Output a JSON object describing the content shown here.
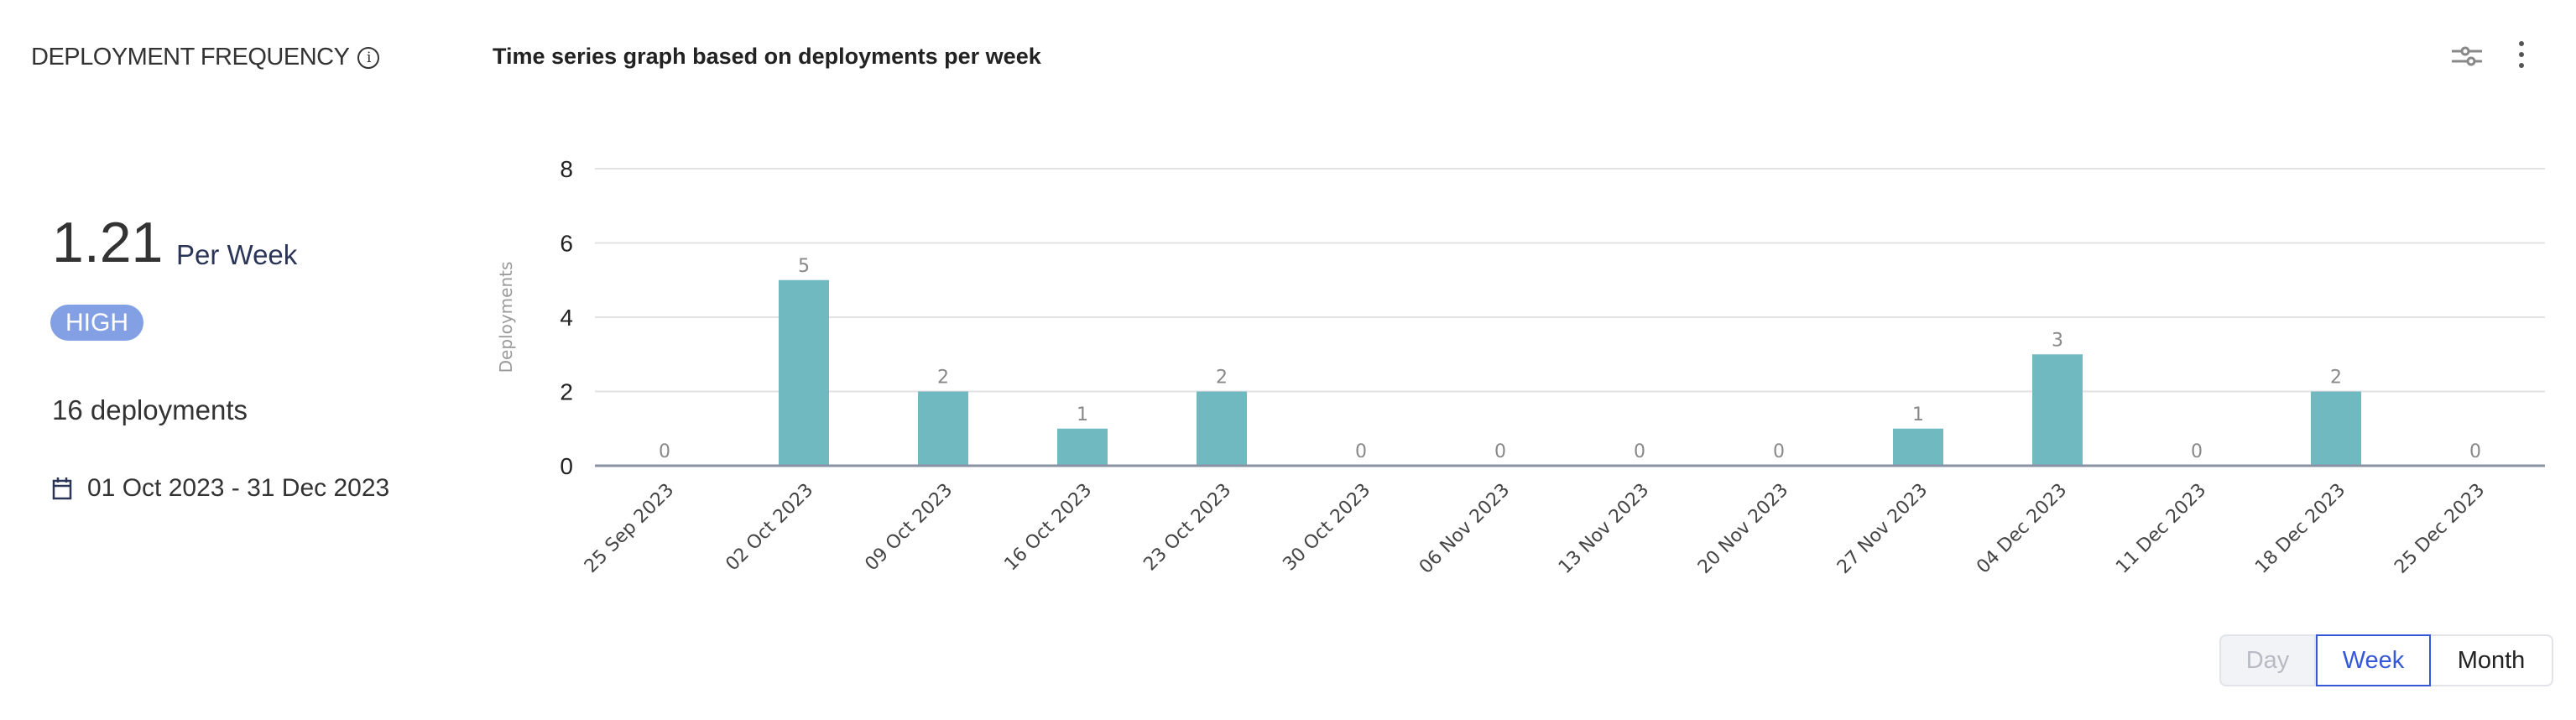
{
  "metric": {
    "title": "DEPLOYMENT FREQUENCY",
    "value": "1.21",
    "unit": "Per Week",
    "badge": "HIGH",
    "badge_color": "#84a0e5",
    "deployments": "16 deployments",
    "date_range": "01 Oct 2023 - 31 Dec 2023"
  },
  "chart_header": {
    "title": "Time series graph based on deployments per week",
    "icons": [
      "filter-sliders-icon",
      "more-vertical-icon"
    ]
  },
  "granularity": {
    "options": [
      "Day",
      "Week",
      "Month"
    ],
    "selected": "Week"
  },
  "chart_data": {
    "type": "bar",
    "ylabel": "Deployments",
    "xlabel": "",
    "ylim": [
      0,
      8
    ],
    "yticks": [
      0,
      2,
      4,
      6,
      8
    ],
    "grid": true,
    "bar_color": "#71b9c1",
    "categories": [
      "25 Sep 2023",
      "02 Oct 2023",
      "09 Oct 2023",
      "16 Oct 2023",
      "23 Oct 2023",
      "30 Oct 2023",
      "06 Nov 2023",
      "13 Nov 2023",
      "20 Nov 2023",
      "27 Nov 2023",
      "04 Dec 2023",
      "11 Dec 2023",
      "18 Dec 2023",
      "25 Dec 2023"
    ],
    "values": [
      0,
      5,
      2,
      1,
      2,
      0,
      0,
      0,
      0,
      1,
      3,
      0,
      2,
      0
    ]
  }
}
